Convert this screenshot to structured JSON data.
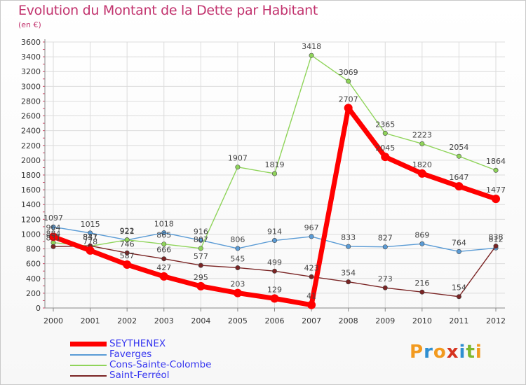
{
  "header": {
    "title": "Evolution du Montant de la Dette par Habitant",
    "subtitle": "(en €)"
  },
  "logo": {
    "text": "Proxiti",
    "colors": [
      "#f29a1f",
      "#2f8fd1",
      "#f29a1f",
      "#d6331f",
      "#2f8fd1",
      "#7fb82f",
      "#f29a1f"
    ]
  },
  "chart_data": {
    "type": "line",
    "title": "Evolution du Montant de la Dette par Habitant",
    "subtitle": "(en €)",
    "x": [
      "2000",
      "2001",
      "2002",
      "2003",
      "2004",
      "2005",
      "2006",
      "2007",
      "2008",
      "2009",
      "2010",
      "2011",
      "2012"
    ],
    "ylim": [
      0,
      3600
    ],
    "yticks": [
      0,
      200,
      400,
      600,
      800,
      1000,
      1200,
      1400,
      1600,
      1800,
      2000,
      2200,
      2400,
      2600,
      2800,
      3000,
      3200,
      3400,
      3600
    ],
    "grid": true,
    "legend": "bottom-left",
    "series": [
      {
        "name": "SEYTHENEX",
        "color": "#ff0000",
        "values": [
          964,
          778,
          587,
          427,
          295,
          203,
          129,
          41,
          2707,
          2045,
          1820,
          1647,
          1477
        ]
      },
      {
        "name": "Faverges",
        "color": "#5a9bd5",
        "values": [
          1097,
          1015,
          921,
          1018,
          916,
          806,
          914,
          967,
          833,
          827,
          869,
          764,
          812
        ]
      },
      {
        "name": "Cons-Sainte-Colombe",
        "color": "#8fd45a",
        "values": [
          884,
          837,
          922,
          865,
          807,
          1907,
          1819,
          3418,
          3069,
          2365,
          2223,
          2054,
          1864
        ]
      },
      {
        "name": "Saint-Ferréol",
        "color": "#7a2424",
        "values": [
          831,
          841,
          746,
          666,
          577,
          545,
          499,
          423,
          354,
          273,
          216,
          154,
          838
        ]
      }
    ]
  }
}
